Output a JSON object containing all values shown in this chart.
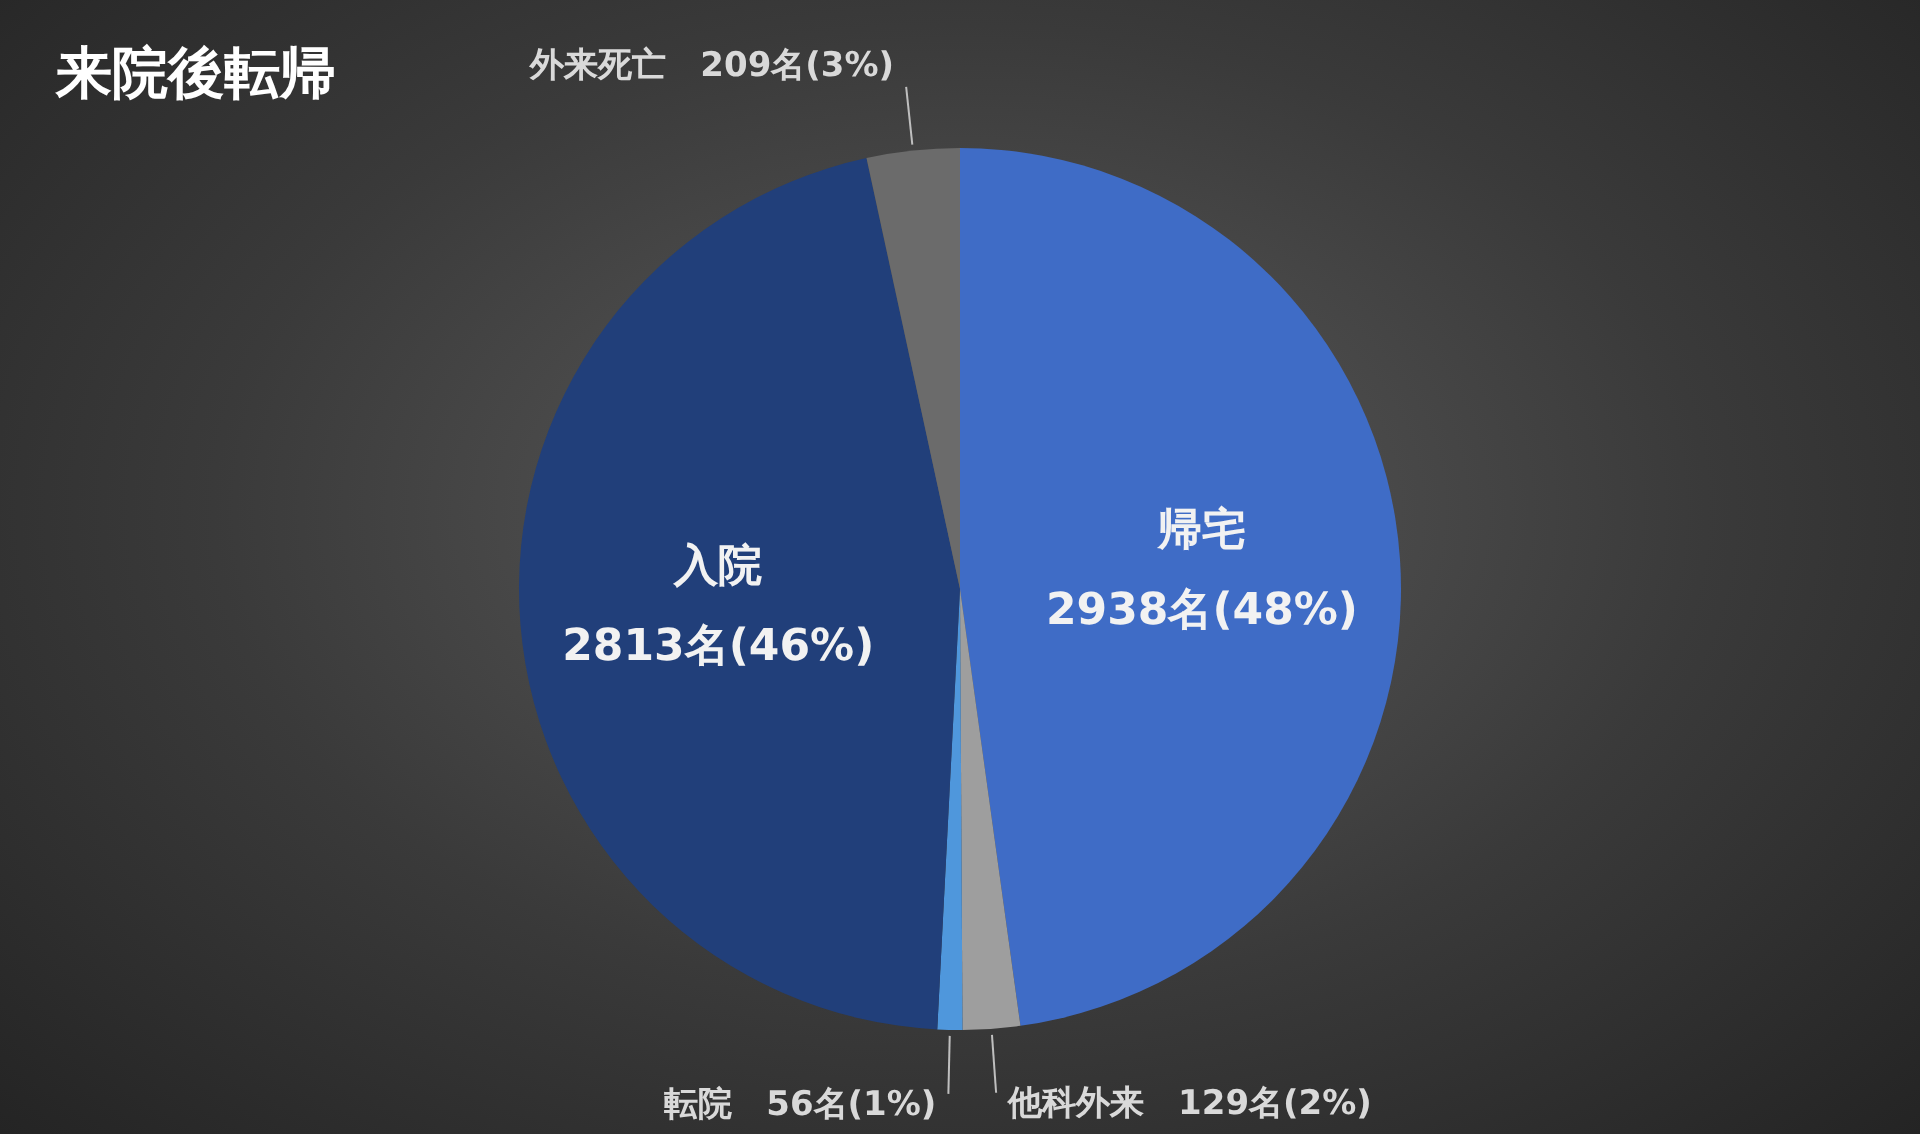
{
  "chart_data": {
    "type": "pie",
    "title": "来院後転帰",
    "categories": [
      "帰宅",
      "他科外来",
      "転院",
      "入院",
      "外来死亡"
    ],
    "values": [
      2938,
      129,
      56,
      2813,
      209
    ],
    "colors": [
      "#3f6cc6",
      "#9e9e9e",
      "#4f97dc",
      "#213f7a",
      "#6b6b6b"
    ],
    "value_labels": [
      "2938名(48%)",
      "129名(2%)",
      "56名(1%)",
      "2813名(46%)",
      "209名(3%)"
    ]
  }
}
